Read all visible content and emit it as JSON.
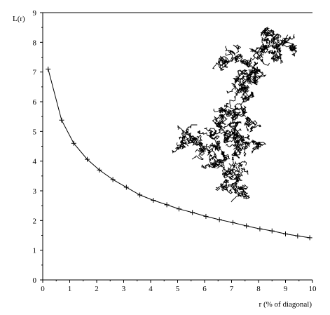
{
  "chart_data": {
    "type": "line",
    "title": "",
    "xlabel": "r (% of diagonal)",
    "ylabel": "L(r)",
    "xlim": [
      0,
      10
    ],
    "ylim": [
      0,
      9
    ],
    "xticks": [
      "0",
      "1",
      "2",
      "3",
      "4",
      "5",
      "6",
      "7",
      "8",
      "9",
      "10"
    ],
    "yticks": [
      "0",
      "1",
      "2",
      "3",
      "4",
      "5",
      "6",
      "7",
      "8",
      "9"
    ],
    "grid": false,
    "legend": "none",
    "marker": "plus",
    "inset": "fractal-curve-image",
    "series": [
      {
        "x": [
          0.2,
          0.7,
          1.15,
          1.65,
          2.1,
          2.6,
          3.1,
          3.6,
          4.1,
          4.6,
          5.05,
          5.55,
          6.05,
          6.55,
          7.05,
          7.55,
          8.05,
          8.5,
          9.0,
          9.45,
          9.9
        ],
        "y": [
          7.1,
          5.38,
          4.6,
          4.06,
          3.7,
          3.38,
          3.12,
          2.86,
          2.68,
          2.53,
          2.39,
          2.27,
          2.14,
          2.03,
          1.93,
          1.82,
          1.72,
          1.65,
          1.55,
          1.48,
          1.42
        ]
      }
    ]
  }
}
